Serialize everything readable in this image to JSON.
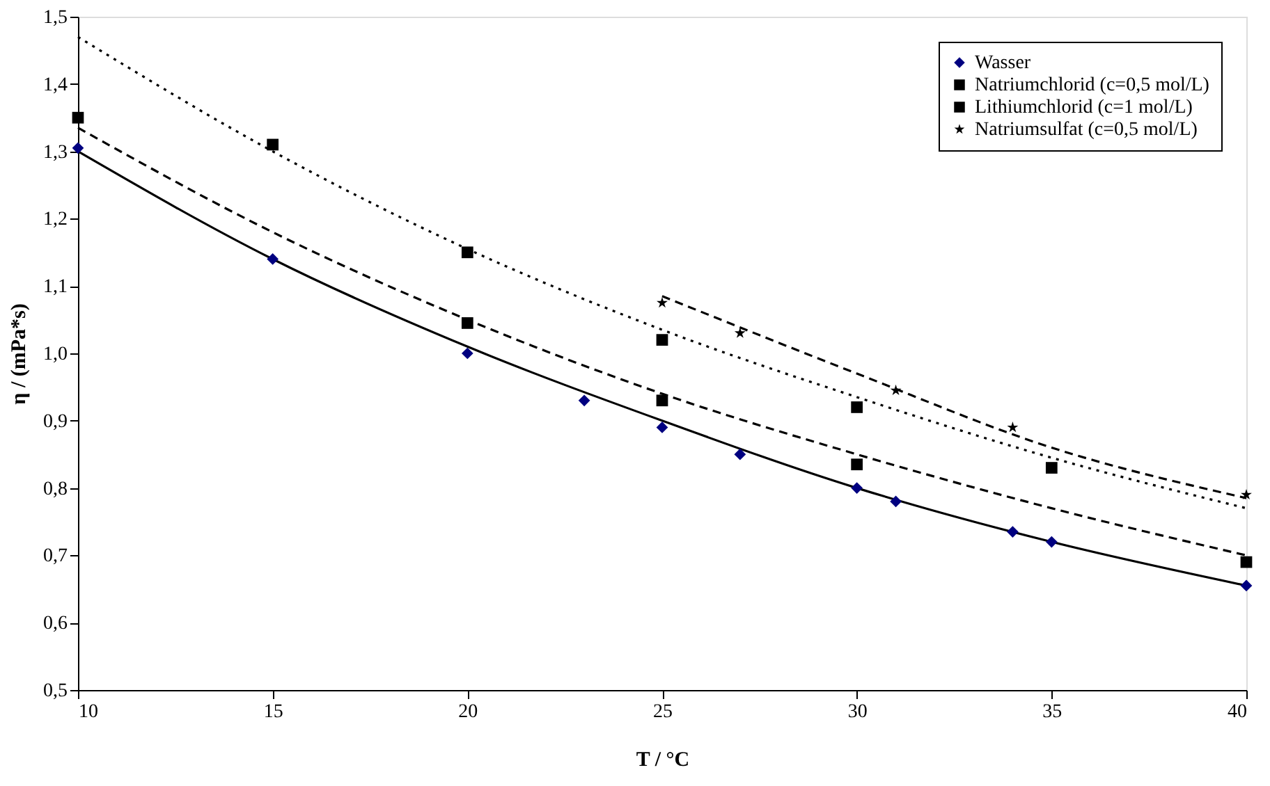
{
  "chart_data": {
    "type": "scatter",
    "xlabel": "T / °C",
    "ylabel": "η / (mPa*s)",
    "xlim": [
      10,
      40
    ],
    "xticks": [
      10,
      15,
      20,
      25,
      30,
      35,
      40
    ],
    "ylim": [
      0.5,
      1.5
    ],
    "yticks": [
      {
        "value": 0.5,
        "label": "0,5"
      },
      {
        "value": 0.6,
        "label": "0,6"
      },
      {
        "value": 0.7,
        "label": "0,7"
      },
      {
        "value": 0.8,
        "label": "0,8"
      },
      {
        "value": 0.9,
        "label": "0,9"
      },
      {
        "value": 1.0,
        "label": "1,0"
      },
      {
        "value": 1.1,
        "label": "1,1"
      },
      {
        "value": 1.2,
        "label": "1,2"
      },
      {
        "value": 1.3,
        "label": "1,3"
      },
      {
        "value": 1.4,
        "label": "1,4"
      },
      {
        "value": 1.5,
        "label": "1,5"
      }
    ],
    "grid": false,
    "legend": "top right",
    "series": [
      {
        "type": "line",
        "color": "#000000",
        "line_style": "solid",
        "marker": "none",
        "x": [
          10,
          15,
          20,
          25,
          30,
          35,
          40
        ],
        "values": [
          1.3,
          1.14,
          1.01,
          0.9,
          0.8,
          0.72,
          0.655
        ]
      },
      {
        "type": "line",
        "color": "#000000",
        "line_style": "dashed",
        "marker": "none",
        "x": [
          10,
          15,
          20,
          25,
          30,
          35,
          40
        ],
        "values": [
          1.335,
          1.18,
          1.05,
          0.94,
          0.85,
          0.77,
          0.7
        ]
      },
      {
        "type": "line",
        "color": "#000000",
        "line_style": "dotted",
        "marker": "none",
        "x": [
          10,
          15,
          20,
          25,
          30,
          35,
          40
        ],
        "values": [
          1.47,
          1.3,
          1.155,
          1.035,
          0.935,
          0.845,
          0.77
        ]
      },
      {
        "type": "line",
        "color": "#000000",
        "line_style": "dashed",
        "marker": "none",
        "x": [
          25,
          30,
          35,
          40
        ],
        "values": [
          1.085,
          0.97,
          0.86,
          0.785
        ]
      },
      {
        "name": "Wasser",
        "color": "#000080",
        "marker": "diamond",
        "x": [
          10,
          15,
          20,
          23,
          25,
          27,
          30,
          31,
          34,
          35,
          40
        ],
        "values": [
          1.305,
          1.14,
          1.0,
          0.93,
          0.89,
          0.85,
          0.8,
          0.78,
          0.735,
          0.72,
          0.655
        ]
      },
      {
        "name": "Natriumchlorid (c=0,5 mol/L)",
        "color": "#000000",
        "marker": "square",
        "x": [
          10,
          20,
          25,
          30,
          40
        ],
        "values": [
          1.35,
          1.045,
          0.93,
          0.835,
          0.69
        ]
      },
      {
        "name": "Lithiumchlorid (c=1 mol/L)",
        "color": "#000000",
        "marker": "square",
        "x": [
          15,
          20,
          25,
          30,
          35
        ],
        "values": [
          1.31,
          1.15,
          1.02,
          0.92,
          0.83
        ]
      },
      {
        "name": "Natriumsulfat (c=0,5 mol/L)",
        "color": "#000000",
        "marker": "star",
        "x": [
          25,
          27,
          31,
          34,
          40
        ],
        "values": [
          1.075,
          1.03,
          0.945,
          0.89,
          0.79
        ]
      }
    ]
  }
}
